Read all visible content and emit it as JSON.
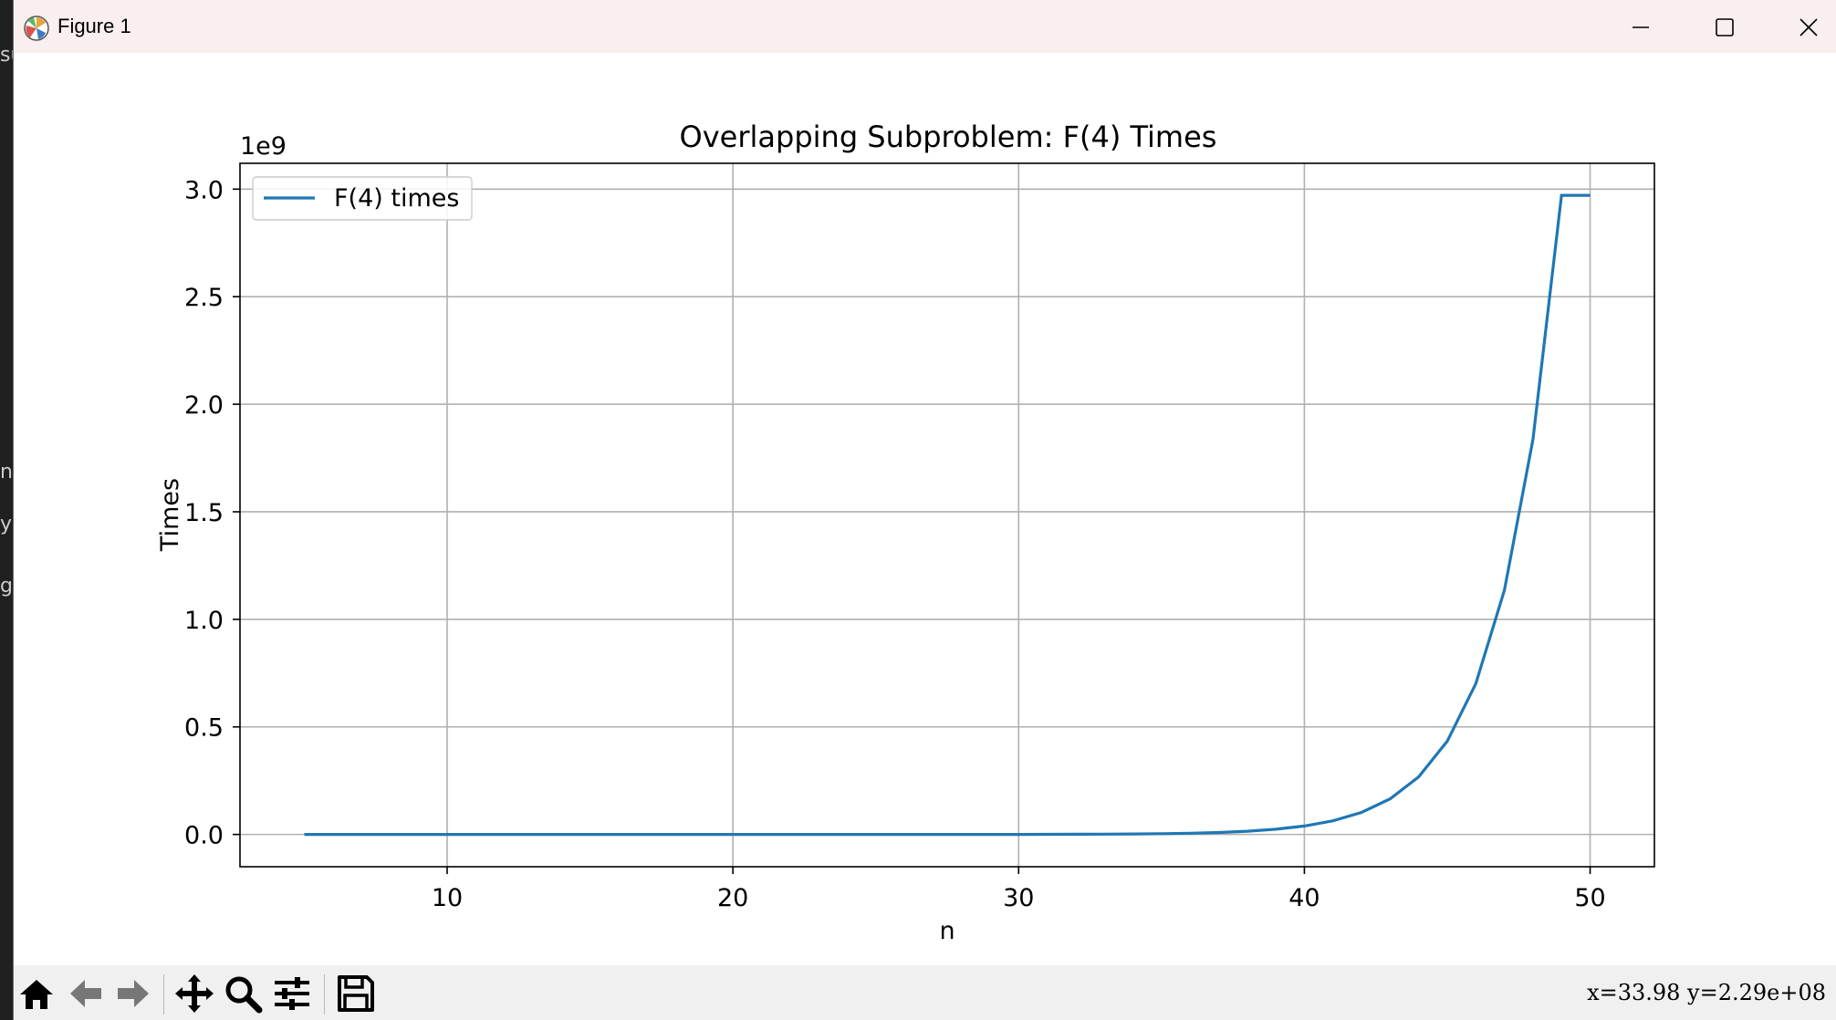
{
  "window": {
    "title": "Figure 1",
    "controls": {
      "minimize": "minimize-icon",
      "maximize": "maximize-icon",
      "close": "close-icon"
    }
  },
  "background": {
    "chars": [
      "su",
      "ng",
      "y",
      "g"
    ]
  },
  "toolbar": {
    "buttons": [
      "home-icon",
      "back-icon",
      "forward-icon",
      "pan-icon",
      "zoom-icon",
      "configure-icon",
      "save-icon"
    ],
    "coords": "x=33.98 y=2.29e+08"
  },
  "chart_data": {
    "type": "line",
    "title": "Overlapping Subproblem: F(4) Times",
    "xlabel": "n",
    "ylabel": "Times",
    "y_offset_text": "1e9",
    "xlim": [
      2.75,
      52.25
    ],
    "ylim": [
      -0.15,
      3.12
    ],
    "x_ticks": [
      10,
      20,
      30,
      40,
      50
    ],
    "y_ticks": [
      0.0,
      0.5,
      1.0,
      1.5,
      2.0,
      2.5,
      3.0
    ],
    "x_tick_labels": [
      "10",
      "20",
      "30",
      "40",
      "50"
    ],
    "y_tick_labels": [
      "0.0",
      "0.5",
      "1.0",
      "1.5",
      "2.0",
      "2.5",
      "3.0"
    ],
    "grid": true,
    "legend": "upper-left",
    "line_color": "#1f77b4",
    "series": [
      {
        "name": "F(4) times",
        "x": [
          5,
          6,
          7,
          8,
          9,
          10,
          11,
          12,
          13,
          14,
          15,
          16,
          17,
          18,
          19,
          20,
          21,
          22,
          23,
          24,
          25,
          26,
          27,
          28,
          29,
          30,
          31,
          32,
          33,
          34,
          35,
          36,
          37,
          38,
          39,
          40,
          41,
          42,
          43,
          44,
          45,
          46,
          47,
          48,
          49,
          50
        ],
        "y": [
          2e-09,
          3e-09,
          5e-09,
          8e-09,
          1.3e-08,
          2.1e-08,
          3.4e-08,
          5.5e-08,
          8.9e-08,
          1.44e-07,
          2.33e-07,
          3.77e-07,
          6.1e-07,
          9.87e-07,
          1.597e-06,
          2.584e-06,
          4.181e-06,
          6.765e-06,
          1.0946e-05,
          1.7711e-05,
          2.8657e-05,
          4.6368e-05,
          7.5025e-05,
          0.000121393,
          0.000196418,
          0.000317811,
          0.000514229,
          0.00083204,
          0.001346269,
          0.002178309,
          0.003524578,
          0.005702887,
          0.009227465,
          0.014930352,
          0.024157817,
          0.039088169,
          0.063245986,
          0.102334155,
          0.165580141,
          0.267914296,
          0.433494437,
          0.701408733,
          1.13490317,
          1.836311903,
          2.971215073,
          2.971215073
        ]
      }
    ]
  }
}
